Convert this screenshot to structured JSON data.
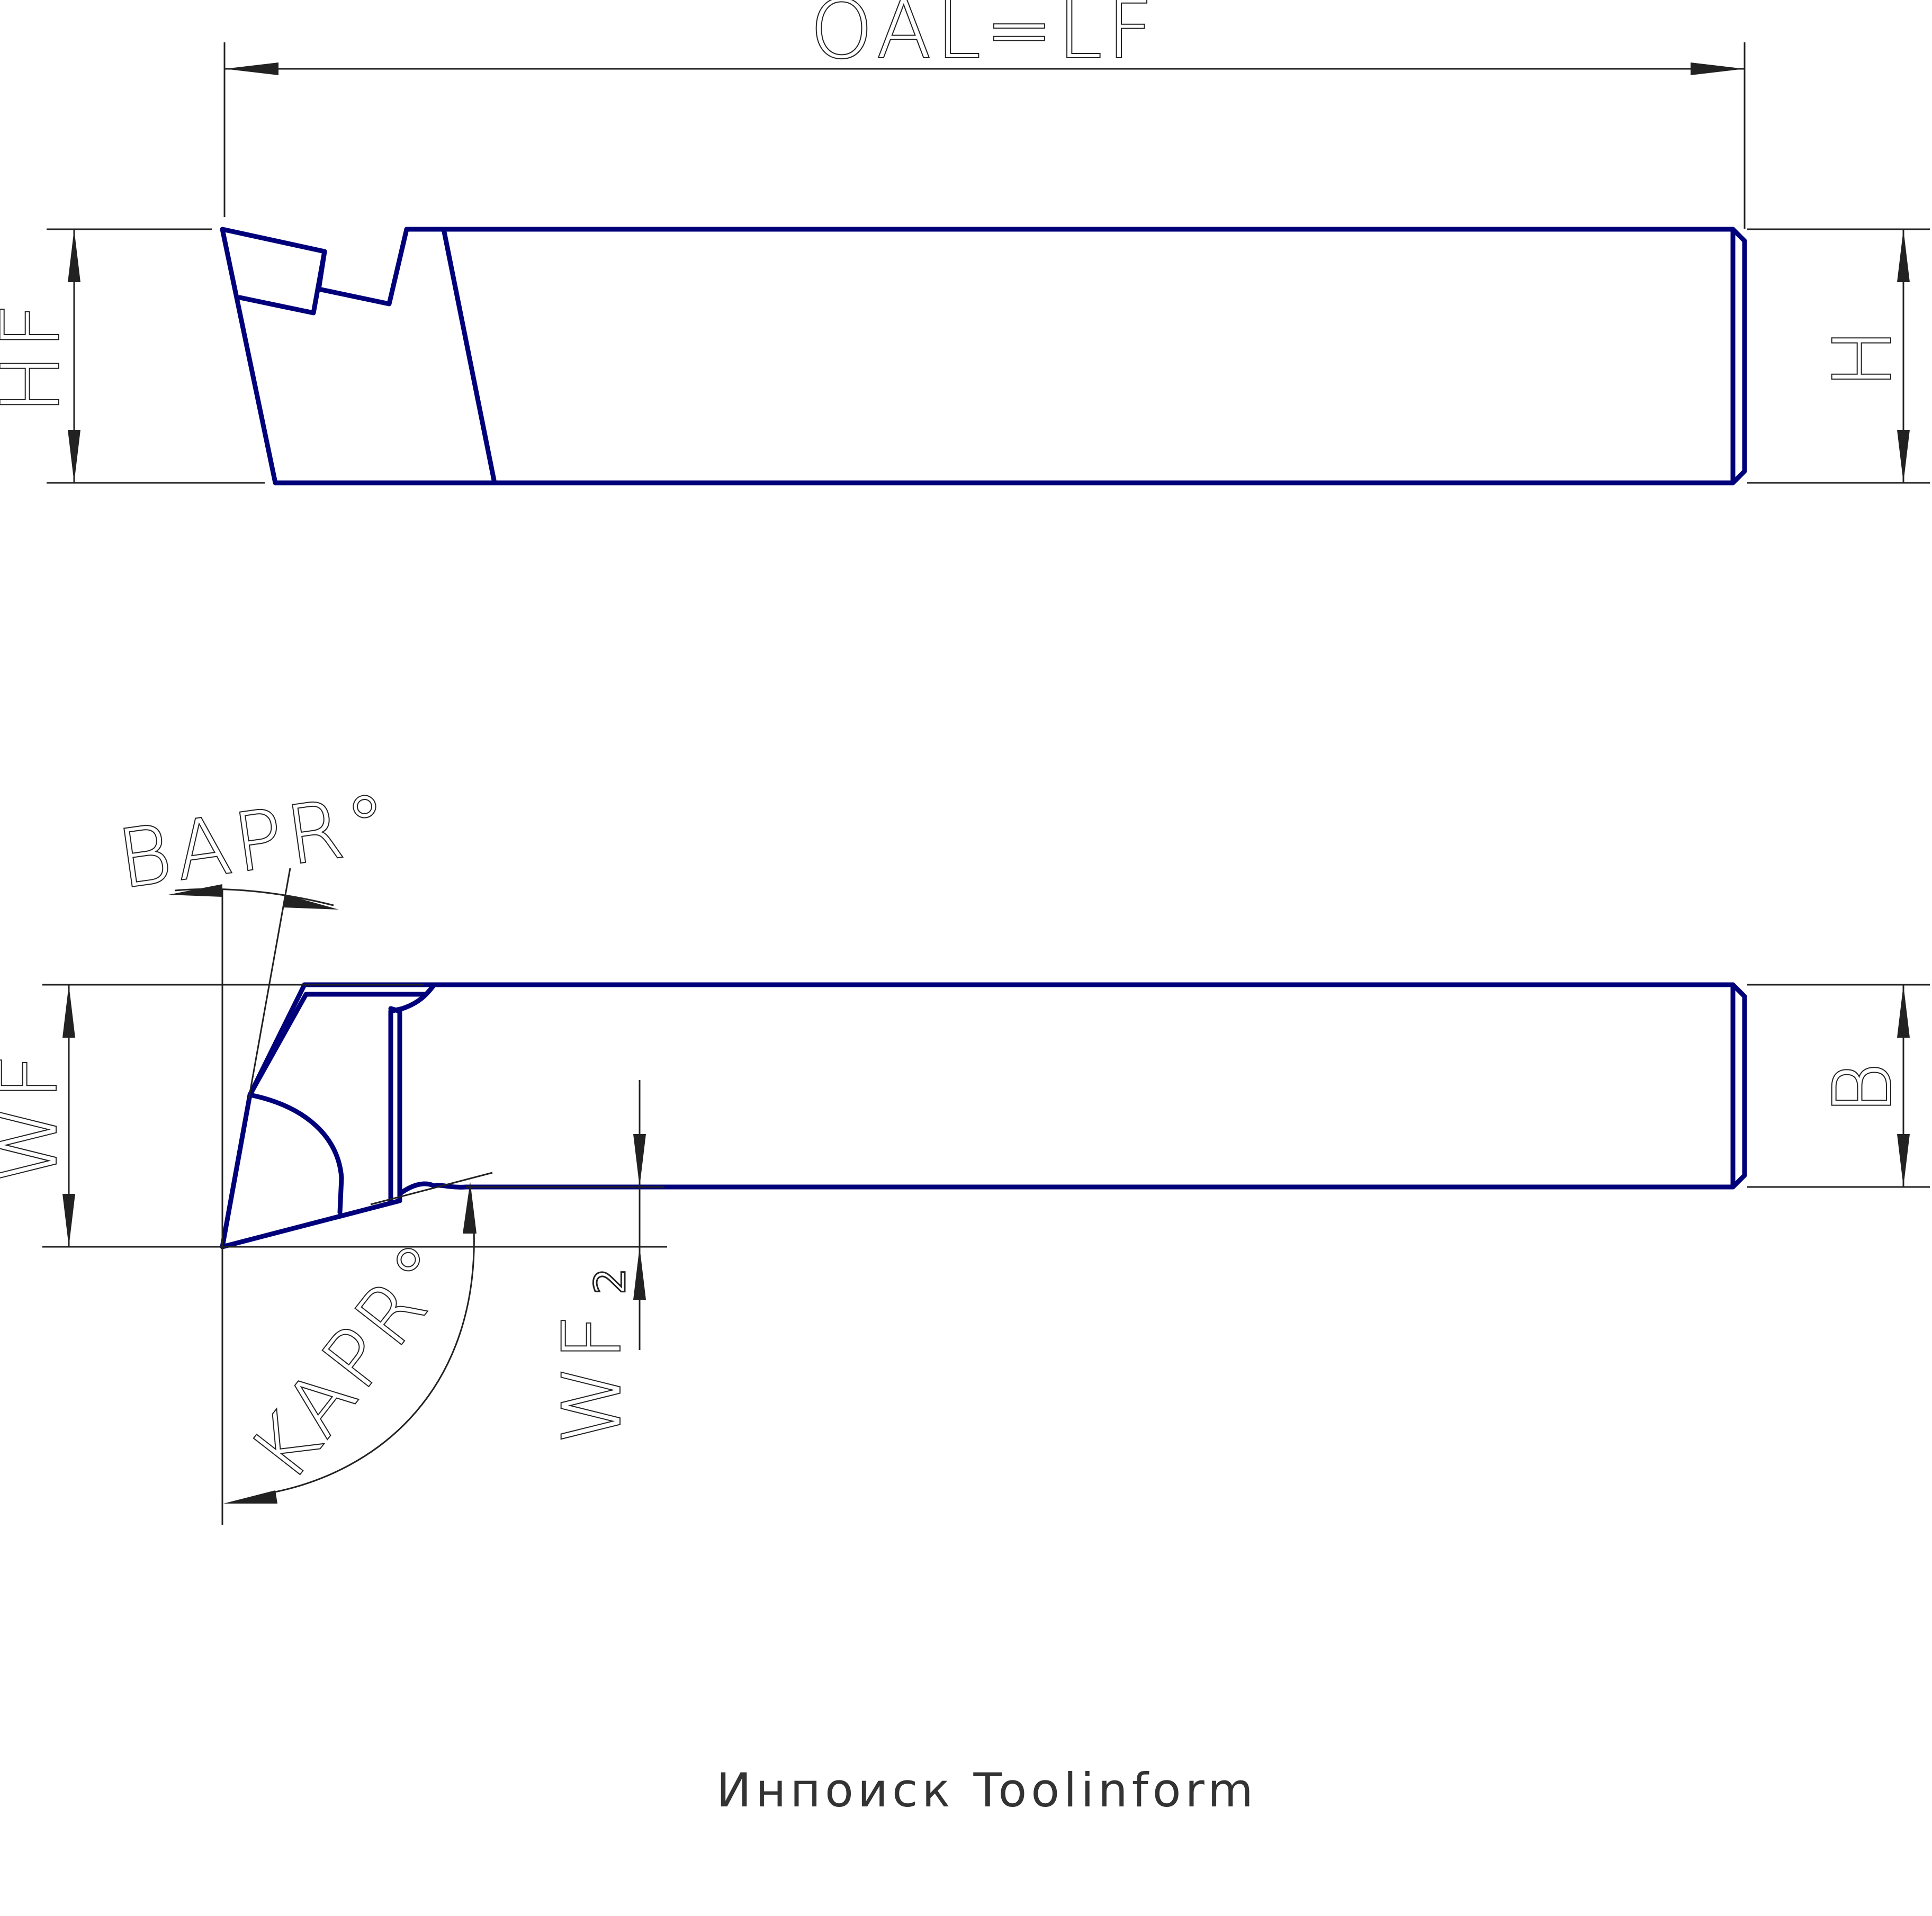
{
  "labels": {
    "oal": "OAL=LF",
    "hf": "HF",
    "h": "H",
    "bapr": "BAPR°",
    "wf": "WF",
    "b": "B",
    "kapr": "KAPR°",
    "wf2_main": "WF",
    "wf2_sub": "2"
  },
  "footer": {
    "credit": "Инпоиск Toolinform"
  },
  "colors": {
    "tool_outline": "#00007a",
    "dimension_lines": "#222222",
    "background": "#ffffff"
  }
}
